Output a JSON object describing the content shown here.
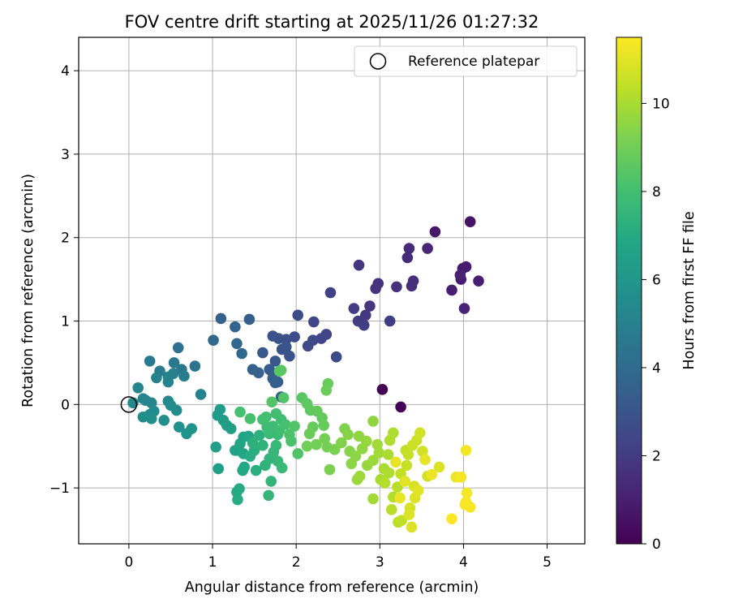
{
  "chart_data": {
    "type": "scatter",
    "title": "FOV centre drift starting at 2025/11/26 01:27:32",
    "xlabel": "Angular distance from reference (arcmin)",
    "ylabel": "Rotation from reference (arcmin)",
    "xlim": [
      -0.6,
      5.45
    ],
    "ylim": [
      -1.67,
      4.4
    ],
    "xticks": [
      "0",
      "1",
      "2",
      "3",
      "4",
      "5"
    ],
    "xtick_values": [
      0,
      1,
      2,
      3,
      4,
      5
    ],
    "yticks": [
      "−1",
      "0",
      "1",
      "2",
      "3",
      "4"
    ],
    "ytick_values": [
      -1,
      0,
      1,
      2,
      3,
      4
    ],
    "grid": true,
    "legend": {
      "position": "top-right",
      "label": "Reference platepar"
    },
    "reference_point": {
      "x": 0,
      "y": 0
    },
    "colorbar": {
      "label": "Hours from first FF file",
      "colormap": "viridis",
      "range": [
        0,
        11.5
      ],
      "ticks": [
        "0",
        "2",
        "4",
        "6",
        "8",
        "10"
      ],
      "tick_values": [
        0,
        2,
        4,
        6,
        8,
        10
      ]
    },
    "points": [
      [
        3.03,
        0.18,
        0.0
      ],
      [
        3.25,
        -0.03,
        0.1
      ],
      [
        4.08,
        2.19,
        0.6
      ],
      [
        3.66,
        2.07,
        0.7
      ],
      [
        3.99,
        1.63,
        0.8
      ],
      [
        4.03,
        1.65,
        0.9
      ],
      [
        3.97,
        1.5,
        0.9
      ],
      [
        4.18,
        1.48,
        1.0
      ],
      [
        3.86,
        1.37,
        1.0
      ],
      [
        4.01,
        1.15,
        1.1
      ],
      [
        3.57,
        1.87,
        1.2
      ],
      [
        3.96,
        1.55,
        1.1
      ],
      [
        3.35,
        1.87,
        1.4
      ],
      [
        3.33,
        1.76,
        1.4
      ],
      [
        3.4,
        1.48,
        1.5
      ],
      [
        3.38,
        1.42,
        1.5
      ],
      [
        3.2,
        1.41,
        1.6
      ],
      [
        2.98,
        1.45,
        1.7
      ],
      [
        2.95,
        1.39,
        1.7
      ],
      [
        2.75,
        1.67,
        1.8
      ],
      [
        2.88,
        1.18,
        1.8
      ],
      [
        2.83,
        1.07,
        1.9
      ],
      [
        2.69,
        1.15,
        2.0
      ],
      [
        2.74,
        1.0,
        2.0
      ],
      [
        2.81,
        0.95,
        2.1
      ],
      [
        3.12,
        1.0,
        2.1
      ],
      [
        2.41,
        1.34,
        2.2
      ],
      [
        2.36,
        0.84,
        2.3
      ],
      [
        2.3,
        0.79,
        2.4
      ],
      [
        2.2,
        0.77,
        2.5
      ],
      [
        2.14,
        0.7,
        2.5
      ],
      [
        2.21,
        0.99,
        2.4
      ],
      [
        2.02,
        1.07,
        2.6
      ],
      [
        2.48,
        0.57,
        2.6
      ],
      [
        1.98,
        0.81,
        2.7
      ],
      [
        1.88,
        0.78,
        2.8
      ],
      [
        1.79,
        0.79,
        2.8
      ],
      [
        1.72,
        0.82,
        2.9
      ],
      [
        1.83,
        0.66,
        2.9
      ],
      [
        1.88,
        0.69,
        3.0
      ],
      [
        1.92,
        0.58,
        3.0
      ],
      [
        1.75,
        0.52,
        3.1
      ],
      [
        1.6,
        0.62,
        3.2
      ],
      [
        1.72,
        0.38,
        3.3
      ],
      [
        1.68,
        0.42,
        3.3
      ],
      [
        1.72,
        0.31,
        3.4
      ],
      [
        1.78,
        0.27,
        3.4
      ],
      [
        1.75,
        0.26,
        3.5
      ],
      [
        1.82,
        0.09,
        3.5
      ],
      [
        1.55,
        0.38,
        3.6
      ],
      [
        1.48,
        0.42,
        3.6
      ],
      [
        1.44,
        1.02,
        3.4
      ],
      [
        1.1,
        1.03,
        3.6
      ],
      [
        1.27,
        0.93,
        3.7
      ],
      [
        1.01,
        0.77,
        3.9
      ],
      [
        1.29,
        0.73,
        3.8
      ],
      [
        1.35,
        0.61,
        3.9
      ],
      [
        0.59,
        0.68,
        4.3
      ],
      [
        0.79,
        0.46,
        4.5
      ],
      [
        0.54,
        0.5,
        4.6
      ],
      [
        0.63,
        0.42,
        4.6
      ],
      [
        0.25,
        0.52,
        4.7
      ],
      [
        0.37,
        0.4,
        4.8
      ],
      [
        0.66,
        0.34,
        4.8
      ],
      [
        0.53,
        0.37,
        4.9
      ],
      [
        0.47,
        0.33,
        5.0
      ],
      [
        0.33,
        0.32,
        5.0
      ],
      [
        0.47,
        0.27,
        5.1
      ],
      [
        0.86,
        0.12,
        5.1
      ],
      [
        0.11,
        0.2,
        5.2
      ],
      [
        0.2,
        0.05,
        5.2
      ],
      [
        0.17,
        0.07,
        5.3
      ],
      [
        0.27,
        0.02,
        5.3
      ],
      [
        0.05,
        0.02,
        5.4
      ],
      [
        0.47,
        0.04,
        5.4
      ],
      [
        0.5,
        -0.01,
        5.5
      ],
      [
        0.3,
        -0.08,
        5.5
      ],
      [
        0.57,
        -0.07,
        5.5
      ],
      [
        0.25,
        -0.12,
        5.6
      ],
      [
        0.17,
        -0.15,
        5.6
      ],
      [
        0.27,
        -0.17,
        5.7
      ],
      [
        0.42,
        -0.19,
        5.7
      ],
      [
        0.6,
        -0.27,
        5.8
      ],
      [
        0.75,
        -0.29,
        5.8
      ],
      [
        0.69,
        -0.35,
        5.9
      ],
      [
        1.06,
        -0.13,
        6.2
      ],
      [
        1.09,
        -0.06,
        6.3
      ],
      [
        1.13,
        -0.19,
        6.3
      ],
      [
        1.17,
        -0.25,
        6.4
      ],
      [
        1.22,
        -0.29,
        6.4
      ],
      [
        1.04,
        -0.51,
        6.5
      ],
      [
        1.07,
        -0.77,
        6.5
      ],
      [
        1.27,
        -0.55,
        6.6
      ],
      [
        1.3,
        -0.55,
        6.6
      ],
      [
        1.33,
        -0.47,
        6.7
      ],
      [
        1.37,
        -0.39,
        6.7
      ],
      [
        1.43,
        -0.38,
        6.8
      ],
      [
        1.37,
        -0.59,
        6.8
      ],
      [
        1.38,
        -0.75,
        6.9
      ],
      [
        1.36,
        -0.79,
        6.9
      ],
      [
        1.29,
        -1.05,
        7.0
      ],
      [
        1.32,
        -1.01,
        7.0
      ],
      [
        1.3,
        -1.14,
        7.1
      ],
      [
        1.45,
        -0.62,
        7.1
      ],
      [
        1.5,
        -0.55,
        7.2
      ],
      [
        1.52,
        -0.79,
        7.2
      ],
      [
        1.48,
        -0.46,
        7.3
      ],
      [
        1.56,
        -0.37,
        7.3
      ],
      [
        1.6,
        -0.49,
        7.4
      ],
      [
        1.63,
        -0.73,
        7.4
      ],
      [
        1.68,
        -0.65,
        7.5
      ],
      [
        1.7,
        -0.92,
        7.5
      ],
      [
        1.67,
        -1.09,
        7.5
      ],
      [
        1.73,
        -0.57,
        7.6
      ],
      [
        1.78,
        -0.68,
        7.6
      ],
      [
        1.83,
        -0.76,
        7.7
      ],
      [
        1.76,
        -0.49,
        7.7
      ],
      [
        1.78,
        -0.36,
        7.7
      ],
      [
        1.65,
        -0.27,
        7.8
      ],
      [
        1.68,
        -0.35,
        7.8
      ],
      [
        1.72,
        -0.26,
        7.8
      ],
      [
        1.8,
        -0.31,
        7.9
      ],
      [
        1.82,
        -0.18,
        7.9
      ],
      [
        1.76,
        -0.11,
        8.0
      ],
      [
        1.64,
        -0.15,
        8.0
      ],
      [
        1.6,
        -0.18,
        8.0
      ],
      [
        1.45,
        -0.17,
        8.1
      ],
      [
        1.33,
        -0.09,
        8.1
      ],
      [
        1.87,
        -0.24,
        8.1
      ],
      [
        1.92,
        -0.36,
        8.2
      ],
      [
        1.94,
        -0.44,
        8.2
      ],
      [
        2.02,
        -0.59,
        8.3
      ],
      [
        1.98,
        -0.26,
        8.3
      ],
      [
        1.71,
        0.03,
        8.4
      ],
      [
        1.85,
        0.08,
        8.4
      ],
      [
        1.8,
        0.4,
        8.5
      ],
      [
        1.82,
        0.41,
        8.5
      ],
      [
        2.07,
        0.08,
        8.5
      ],
      [
        2.13,
        0.01,
        8.6
      ],
      [
        2.17,
        -0.07,
        8.6
      ],
      [
        2.25,
        -0.08,
        8.7
      ],
      [
        2.31,
        -0.16,
        8.7
      ],
      [
        2.33,
        -0.25,
        8.8
      ],
      [
        2.38,
        0.25,
        8.8
      ],
      [
        2.36,
        0.17,
        8.9
      ],
      [
        2.2,
        -0.27,
        8.8
      ],
      [
        2.16,
        -0.35,
        8.9
      ],
      [
        2.13,
        -0.5,
        9.0
      ],
      [
        2.24,
        -0.48,
        9.0
      ],
      [
        2.34,
        -0.41,
        9.1
      ],
      [
        2.37,
        -0.51,
        9.1
      ],
      [
        2.4,
        -0.78,
        9.2
      ],
      [
        2.46,
        -0.54,
        9.2
      ],
      [
        2.54,
        -0.46,
        9.3
      ],
      [
        2.58,
        -0.29,
        9.3
      ],
      [
        2.62,
        -0.36,
        9.4
      ],
      [
        2.64,
        -0.56,
        9.4
      ],
      [
        2.66,
        -0.71,
        9.5
      ],
      [
        2.71,
        -0.62,
        9.5
      ],
      [
        2.75,
        -0.38,
        9.6
      ],
      [
        2.79,
        -0.53,
        9.6
      ],
      [
        2.84,
        -0.44,
        9.7
      ],
      [
        2.85,
        -0.73,
        9.7
      ],
      [
        2.76,
        -0.86,
        9.8
      ],
      [
        2.73,
        -0.9,
        9.8
      ],
      [
        2.92,
        -0.2,
        9.6
      ],
      [
        2.92,
        -0.67,
        9.8
      ],
      [
        2.97,
        -0.48,
        9.9
      ],
      [
        2.99,
        -0.58,
        9.9
      ],
      [
        2.92,
        -1.13,
        9.9
      ],
      [
        3.01,
        -0.9,
        10.0
      ],
      [
        3.05,
        -0.77,
        10.0
      ],
      [
        3.1,
        -0.6,
        10.0
      ],
      [
        3.12,
        -0.43,
        10.1
      ],
      [
        3.16,
        -0.34,
        10.1
      ],
      [
        3.11,
        -0.82,
        10.1
      ],
      [
        3.06,
        -0.94,
        10.2
      ],
      [
        3.16,
        -1.11,
        10.2
      ],
      [
        3.14,
        -1.26,
        10.3
      ],
      [
        3.21,
        -0.99,
        10.3
      ],
      [
        3.22,
        -1.41,
        10.3
      ],
      [
        3.26,
        -1.39,
        10.4
      ],
      [
        3.25,
        -0.83,
        10.4
      ],
      [
        3.31,
        -0.55,
        10.4
      ],
      [
        3.32,
        -0.73,
        10.5
      ],
      [
        3.34,
        -0.6,
        10.5
      ],
      [
        3.39,
        -0.49,
        10.6
      ],
      [
        3.44,
        -0.43,
        10.6
      ],
      [
        3.48,
        -0.34,
        10.7
      ],
      [
        3.51,
        -0.56,
        10.7
      ],
      [
        3.57,
        -0.86,
        10.7
      ],
      [
        3.41,
        -0.98,
        10.8
      ],
      [
        3.36,
        -1.24,
        10.8
      ],
      [
        3.38,
        -1.47,
        10.9
      ],
      [
        3.35,
        -1.32,
        10.9
      ],
      [
        3.42,
        -1.12,
        10.9
      ],
      [
        3.46,
        -1.03,
        11.0
      ],
      [
        3.3,
        -0.92,
        11.0
      ],
      [
        3.24,
        -1.12,
        11.1
      ],
      [
        3.19,
        -0.69,
        11.1
      ],
      [
        3.54,
        -0.66,
        11.1
      ],
      [
        3.71,
        -0.75,
        10.9
      ],
      [
        3.62,
        -0.84,
        11.2
      ],
      [
        3.91,
        -0.87,
        11.2
      ],
      [
        3.97,
        -0.87,
        11.3
      ],
      [
        4.03,
        -0.55,
        11.3
      ],
      [
        4.04,
        -1.06,
        11.3
      ],
      [
        4.02,
        -1.2,
        11.4
      ],
      [
        4.08,
        -1.23,
        11.4
      ],
      [
        4.03,
        -1.17,
        11.4
      ],
      [
        3.86,
        -1.37,
        11.5
      ]
    ]
  }
}
